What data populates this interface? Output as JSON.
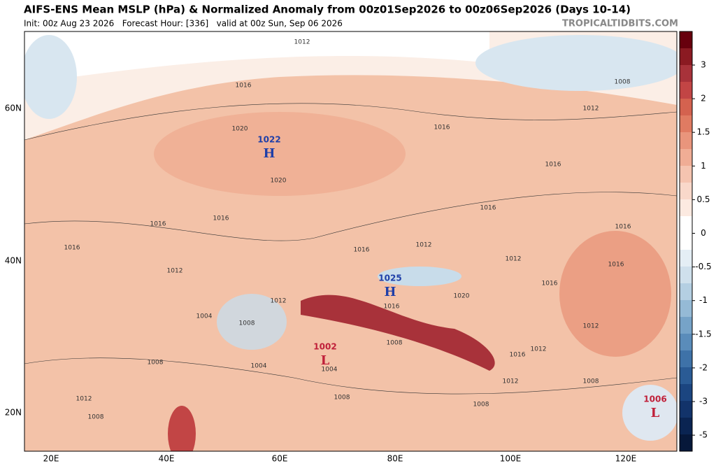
{
  "header": {
    "title": "AIFS-ENS Mean MSLP (hPa) & Normalized Anomaly from 00z01Sep2026 to 00z06Sep2026 (Days 10-14)",
    "subtitle": "Init: 00z Aug 23 2026   Forecast Hour: [336]   valid at 00z Sun, Sep 06 2026",
    "brand": "TROPICALTIDBITS.COM"
  },
  "map": {
    "lat_labels": [
      "60N",
      "40N",
      "20N"
    ],
    "lon_labels": [
      "20E",
      "40E",
      "60E",
      "80E",
      "100E",
      "120E"
    ],
    "contour_labels": [
      "1012",
      "1016",
      "1020",
      "1020",
      "1016",
      "1012",
      "1008",
      "1016",
      "1016",
      "1016",
      "1016",
      "1016",
      "1016",
      "1012",
      "1016",
      "1012",
      "1012",
      "1016",
      "1016",
      "1020",
      "1016",
      "1012",
      "1004",
      "1008",
      "1008",
      "1004",
      "1004",
      "1008",
      "1012",
      "1012",
      "1016",
      "1012",
      "1008",
      "1012",
      "1008",
      "1008",
      "1008"
    ],
    "centers": [
      {
        "value": "1022",
        "letter": "H"
      },
      {
        "value": "1025",
        "letter": "H"
      },
      {
        "value": "1002",
        "letter": "L"
      },
      {
        "value": "1006",
        "letter": "L"
      }
    ]
  },
  "colorbar": {
    "ticks": [
      3,
      2,
      1.5,
      1,
      0.5,
      0,
      -0.5,
      -1,
      -1.5,
      -2,
      -3,
      -5
    ]
  }
}
